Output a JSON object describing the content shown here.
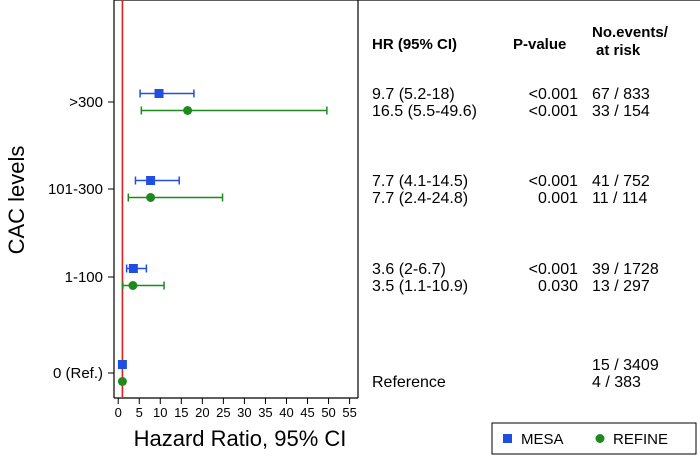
{
  "chart_data": {
    "type": "forest",
    "xlabel": "Hazard Ratio, 95% CI",
    "ylabel": "CAC levels",
    "xlim": [
      -1,
      57
    ],
    "xticks": [
      0,
      5,
      10,
      15,
      20,
      25,
      30,
      35,
      40,
      45,
      50,
      55
    ],
    "reference_line": 1,
    "legend": [
      "MESA",
      "REFINE"
    ],
    "legend_position": "bottom-right",
    "categories": [
      ">300",
      "101-300",
      "1-100",
      "0 (Ref.)"
    ],
    "table_headers": {
      "hr": "HR (95% CI)",
      "p": "P-value",
      "events_line1": "No.events/",
      "events_line2": "at risk"
    },
    "series": [
      {
        "name": "MESA",
        "color": "#1f4fe0",
        "marker": "square",
        "points": [
          {
            "category": ">300",
            "hr": 9.7,
            "lo": 5.2,
            "hi": 18,
            "hr_text": "9.7 (5.2-18)",
            "p": "<0.001",
            "events": "67 / 833"
          },
          {
            "category": "101-300",
            "hr": 7.7,
            "lo": 4.1,
            "hi": 14.5,
            "hr_text": "7.7 (4.1-14.5)",
            "p": "<0.001",
            "events": "41 / 752"
          },
          {
            "category": "1-100",
            "hr": 3.6,
            "lo": 2,
            "hi": 6.7,
            "hr_text": "3.6 (2-6.7)",
            "p": "<0.001",
            "events": "39 / 1728"
          },
          {
            "category": "0 (Ref.)",
            "hr": 1,
            "lo": 1,
            "hi": 1,
            "hr_text": "",
            "p": "",
            "events": "15 / 3409"
          }
        ]
      },
      {
        "name": "REFINE",
        "color": "#1e8a1e",
        "marker": "circle",
        "points": [
          {
            "category": ">300",
            "hr": 16.5,
            "lo": 5.5,
            "hi": 49.6,
            "hr_text": "16.5 (5.5-49.6)",
            "p": "<0.001",
            "events": "33 / 154"
          },
          {
            "category": "101-300",
            "hr": 7.7,
            "lo": 2.4,
            "hi": 24.8,
            "hr_text": "7.7 (2.4-24.8)",
            "p": "0.001",
            "events": "11 / 114"
          },
          {
            "category": "1-100",
            "hr": 3.5,
            "lo": 1.1,
            "hi": 10.9,
            "hr_text": "3.5 (1.1-10.9)",
            "p": "0.030",
            "events": "13 / 297"
          },
          {
            "category": "0 (Ref.)",
            "hr": 1,
            "lo": 1,
            "hi": 1,
            "hr_text": "Reference",
            "p": "",
            "events": "4 / 383"
          }
        ]
      }
    ]
  }
}
